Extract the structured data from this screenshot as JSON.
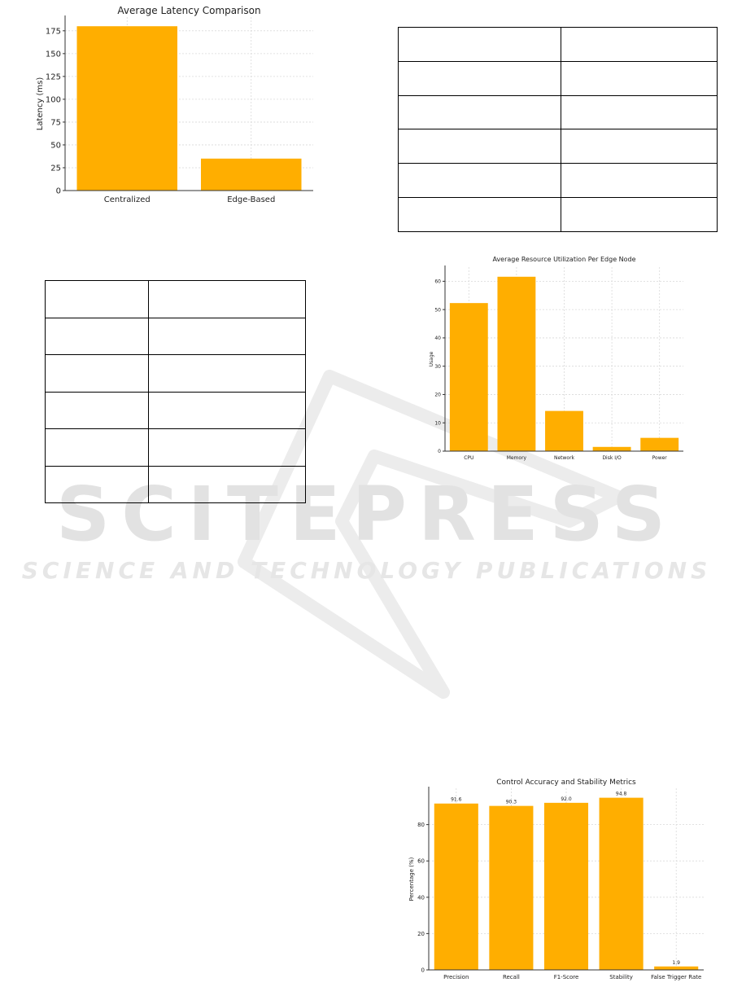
{
  "watermark": {
    "line1": "SCITEPRESS",
    "line2": "SCIENCE AND TECHNOLOGY PUBLICATIONS"
  },
  "chart_data": [
    {
      "type": "bar",
      "title": "Average Latency Comparison",
      "xlabel": "",
      "ylabel": "Latency (ms)",
      "categories": [
        "Centralized",
        "Edge-Based"
      ],
      "values": [
        180,
        35
      ],
      "ylim": [
        0,
        190
      ],
      "yticks": [
        0,
        25,
        50,
        75,
        100,
        125,
        150,
        175
      ],
      "grid": true,
      "color": "#FFAE00"
    },
    {
      "type": "bar",
      "title": "Average Resource Utilization Per Edge Node",
      "xlabel": "",
      "ylabel": "Usage",
      "categories": [
        "CPU",
        "Memory",
        "Network",
        "Disk I/O",
        "Power"
      ],
      "values": [
        52.3,
        61.6,
        14.2,
        1.5,
        4.7
      ],
      "ylim": [
        0,
        65
      ],
      "yticks": [
        0,
        10,
        20,
        30,
        40,
        50,
        60
      ],
      "grid": true,
      "color": "#FFAE00"
    },
    {
      "type": "bar",
      "title": "Control Accuracy and Stability Metrics",
      "xlabel": "",
      "ylabel": "Percentage (%)",
      "categories": [
        "Precision",
        "Recall",
        "F1-Score",
        "Stability",
        "False Trigger Rate"
      ],
      "values": [
        91.6,
        90.3,
        92.0,
        94.8,
        1.9
      ],
      "value_labels": [
        "91.6",
        "90.3",
        "92.0",
        "94.8",
        "1.9"
      ],
      "ylim": [
        0,
        100
      ],
      "yticks": [
        0,
        20,
        40,
        60,
        80
      ],
      "grid": true,
      "color": "#FFAE00"
    }
  ]
}
